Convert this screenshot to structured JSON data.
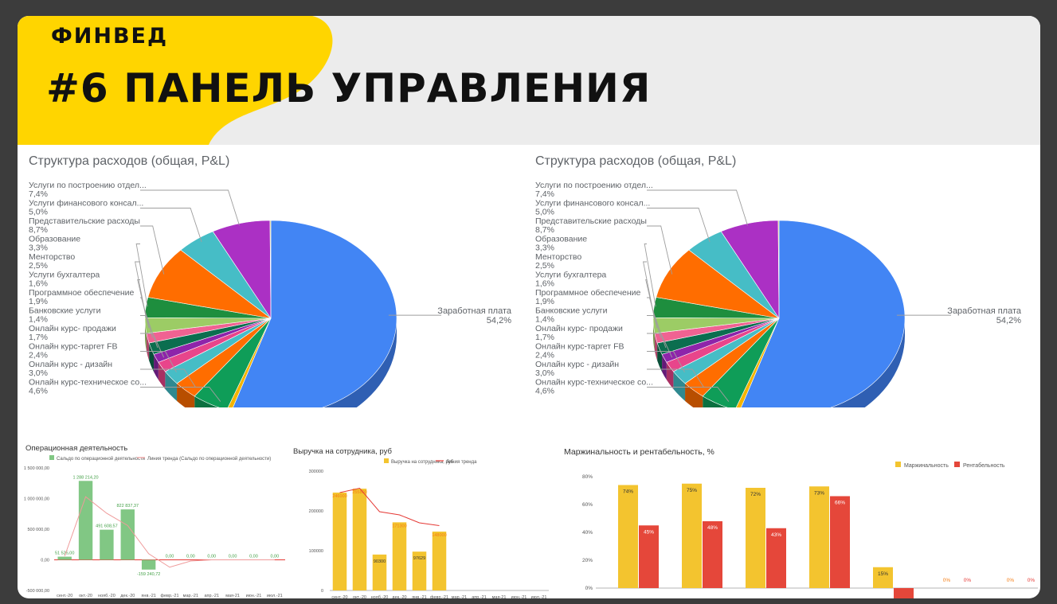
{
  "header": {
    "brand": "ФИНВЕД",
    "title": "#6 ПАНЕЛЬ УПРАВЛЕНИЯ"
  },
  "colors": {
    "header_yellow": "#ffd500",
    "header_gray": "#ececec"
  },
  "chart_data": [
    {
      "id": "pie-left",
      "type": "pie",
      "title": "Структура расходов (общая, P&L)",
      "slices": [
        {
          "label": "Заработная плата",
          "pct": "54,2%",
          "value": 54.2,
          "color": "#4285f4",
          "dark": "#2f5fb3"
        },
        {
          "label": "",
          "pct": "",
          "value": 0.6,
          "color": "#f4b400",
          "dark": "#b07f00"
        },
        {
          "label": "",
          "pct": "",
          "value": 4.6,
          "color": "#0f9d58",
          "dark": "#0b7040"
        },
        {
          "label": "",
          "pct": "",
          "value": 3.0,
          "color": "#ff6d00",
          "dark": "#b84e00"
        },
        {
          "label": "",
          "pct": "",
          "value": 2.4,
          "color": "#46bdc6",
          "dark": "#2f8990"
        },
        {
          "label": "",
          "pct": "",
          "value": 1.7,
          "color": "#e8458b",
          "dark": "#a83063"
        },
        {
          "label": "",
          "pct": "",
          "value": 1.4,
          "color": "#8e24aa",
          "dark": "#631a77"
        },
        {
          "label": "",
          "pct": "",
          "value": 1.9,
          "color": "#0b6e4f",
          "dark": "#084f38"
        },
        {
          "label": "",
          "pct": "",
          "value": 1.6,
          "color": "#f06292",
          "dark": "#ad4669"
        },
        {
          "label": "",
          "pct": "",
          "value": 2.5,
          "color": "#9ccc65",
          "dark": "#709348"
        },
        {
          "label": "",
          "pct": "",
          "value": 3.3,
          "color": "#1e8e3e",
          "dark": "#15652c"
        },
        {
          "label": "",
          "pct": "",
          "value": 8.7,
          "color": "#ff6d00",
          "dark": "#b84e00"
        },
        {
          "label": "",
          "pct": "",
          "value": 5.0,
          "color": "#46bdc6",
          "dark": "#2f8990"
        },
        {
          "label": "",
          "pct": "",
          "value": 7.4,
          "color": "#ab30c4",
          "dark": "#7a238c"
        },
        {
          "label": "",
          "pct": "",
          "value": 0.1,
          "color": "#c0ba2d",
          "dark": "#8a8520"
        }
      ],
      "legend": [
        {
          "label": "Услуги по построению отдел...",
          "pct": "7,4%"
        },
        {
          "label": "Услуги финансового консал...",
          "pct": "5,0%"
        },
        {
          "label": "Представительские расходы",
          "pct": "8,7%"
        },
        {
          "label": "Образование",
          "pct": "3,3%"
        },
        {
          "label": "Менторство",
          "pct": "2,5%"
        },
        {
          "label": "Услуги бухгалтера",
          "pct": "1,6%"
        },
        {
          "label": "Программное обеспечение",
          "pct": "1,9%"
        },
        {
          "label": "Банковские услуги",
          "pct": "1,4%"
        },
        {
          "label": "Онлайн курс- продажи",
          "pct": "1,7%"
        },
        {
          "label": "Онлайн курс-таргет FB",
          "pct": "2,4%"
        },
        {
          "label": "Онлайн курс - дизайн",
          "pct": "3,0%"
        },
        {
          "label": "Онлайн курс-техническое со...",
          "pct": "4,6%"
        }
      ]
    },
    {
      "id": "pie-right",
      "type": "pie",
      "title": "Структура расходов (общая, P&L)",
      "slices": "same-as-left",
      "legend": [
        {
          "label": "Услуги по построению отдел...",
          "pct": "7,4%"
        },
        {
          "label": "Услуги финансового консал...",
          "pct": "5,0%"
        },
        {
          "label": "Представительские расходы",
          "pct": "8,7%"
        },
        {
          "label": "Образование",
          "pct": "3,3%"
        },
        {
          "label": "Менторство",
          "pct": "2,5%"
        },
        {
          "label": "Услуги бухгалтера",
          "pct": "1,6%"
        },
        {
          "label": "Программное обеспечение",
          "pct": "1,9%"
        },
        {
          "label": "Банковские услуги",
          "pct": "1,4%"
        },
        {
          "label": "Онлайн курс- продажи",
          "pct": "1,7%"
        },
        {
          "label": "Онлайн курс-таргет FB",
          "pct": "2,4%"
        },
        {
          "label": "Онлайн курс - дизайн",
          "pct": "3,0%"
        },
        {
          "label": "Онлайн курс-техническое со...",
          "pct": "4,6%"
        }
      ],
      "main_label": "Заработная плата",
      "main_pct": "54,2%"
    },
    {
      "id": "ops",
      "type": "bar",
      "title": "Операционная деятельность",
      "legend": [
        "Сальдо по операционной деятельности",
        "Линия тренда (Сальдо по операционной деятельности)"
      ],
      "categories": [
        "сент.-20",
        "окт.-20",
        "нояб.-20",
        "дек.-20",
        "янв.-21",
        "февр.-21",
        "мар.-21",
        "апр.-21",
        "мая-21",
        "июн.-21",
        "июл.-21"
      ],
      "values": [
        51525,
        1288214.2,
        491608.57,
        822837.37,
        -159240.72,
        0,
        0,
        0,
        0,
        0,
        0
      ],
      "value_labels": [
        "51 525,00",
        "1 288 214,20",
        "491 608,57",
        "822 837,37",
        "-159 240,72",
        "0,00",
        "0,00",
        "0,00",
        "0,00",
        "0,00",
        "0,00"
      ],
      "trend": [
        60000,
        1030000,
        760000,
        560000,
        100000,
        -120000,
        -20000,
        0,
        0,
        0,
        0
      ],
      "yticks": [
        1500000,
        1000000,
        500000,
        0,
        -500000
      ],
      "ytick_labels": [
        "1 500 000,00",
        "1 000 000,00",
        "500 000,00",
        "0,00",
        "-500 000,00"
      ],
      "ylim": [
        -500000,
        1500000
      ],
      "bar_color": "#81c784",
      "trend_color": "#ef9a9a"
    },
    {
      "id": "rev",
      "type": "bar",
      "title": "Выручка на сотрудника, руб",
      "legend": [
        "Выручка на сотрудника, руб",
        "Линия тренда"
      ],
      "categories": [
        "сент.-20",
        "окт.-20",
        "нояб.-20",
        "дек.-20",
        "янв.-21",
        "февр.-21",
        "мар.-21",
        "апр.-21",
        "мая-21",
        "июн.-21",
        "июл.-21"
      ],
      "values": [
        246000,
        255800,
        90300,
        171300,
        97629,
        148000,
        0,
        0,
        0,
        0,
        0
      ],
      "value_labels": [
        "246000",
        "255800",
        "90300",
        "171300",
        "97629",
        "148000",
        "",
        "",
        "",
        "",
        ""
      ],
      "trend": [
        246000,
        257000,
        198000,
        190000,
        170000,
        163000
      ],
      "yticks": [
        300000,
        200000,
        100000,
        0
      ],
      "ytick_labels": [
        "300000",
        "200000",
        "100000",
        "0"
      ],
      "ylim": [
        0,
        300000
      ],
      "bar_color": "#f3c42f",
      "trend_color": "#e53935"
    },
    {
      "id": "margin",
      "type": "bar",
      "title": "Маржинальность и рентабельность, %",
      "series": [
        {
          "name": "Маржинальность",
          "color": "#f3c42f",
          "values": [
            74,
            75,
            72,
            73,
            15,
            0,
            0
          ],
          "labels": [
            "74%",
            "75%",
            "72%",
            "73%",
            "15%",
            "0%",
            "0%"
          ]
        },
        {
          "name": "Рентабельность",
          "color": "#e5473a",
          "values": [
            45,
            48,
            43,
            66,
            -10,
            0,
            0
          ],
          "labels": [
            "45%",
            "48%",
            "43%",
            "66%",
            "",
            "0%",
            "0%"
          ]
        }
      ],
      "yticks": [
        80,
        60,
        40,
        20,
        0
      ],
      "ytick_labels": [
        "80%",
        "60%",
        "40%",
        "20%",
        "0%"
      ],
      "ylim": [
        0,
        80
      ]
    }
  ]
}
